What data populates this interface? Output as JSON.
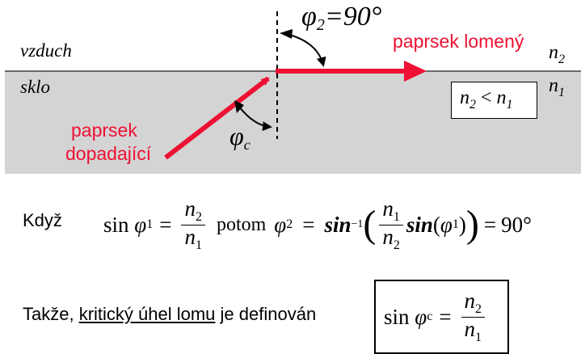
{
  "diagram": {
    "air_label": "vzduch",
    "glass_label": "sklo",
    "n2_right": "n",
    "n2_right_sub": "2",
    "n1_right": "n",
    "n1_right_sub": "1",
    "refracted_label": "paprsek lomený",
    "incident_label_line1": "paprsek",
    "incident_label_line2": "dopadající",
    "phi2_symbol": "φ",
    "phi2_sub": "2",
    "phi2_value": "=90°",
    "phic_symbol": "φ",
    "phic_sub": "c",
    "inequality_n": "n",
    "inequality_sub2": "2",
    "inequality_lt": "<",
    "inequality_sub1": "1",
    "colors": {
      "ray": "#ee1133",
      "glass": "#d4d4d4",
      "air": "#ffffff"
    }
  },
  "formula1": {
    "lead": "Když",
    "sin": "sin",
    "phi": "φ",
    "sub1": "1",
    "eq": "=",
    "frac_num": "n",
    "frac_num_sub": "2",
    "frac_den": "n",
    "frac_den_sub": "1",
    "then": "potom",
    "phi2": "φ",
    "phi2_sub": "2",
    "eq2": "=",
    "asin": "sin",
    "asin_sup": "−1",
    "in_num": "n",
    "in_num_sub": "1",
    "in_den": "n",
    "in_den_sub": "2",
    "sin2": "sin",
    "phi1": "φ",
    "phi1_sub": "1",
    "eq3": "=",
    "result": "90°"
  },
  "formula2": {
    "lead": "Takže, ",
    "link": "kritický úhel lomu",
    "tail": " je definován",
    "sin": "sin",
    "phi": "φ",
    "sub": "c",
    "eq": "=",
    "num": "n",
    "num_sub": "2",
    "den": "n",
    "den_sub": "1"
  }
}
